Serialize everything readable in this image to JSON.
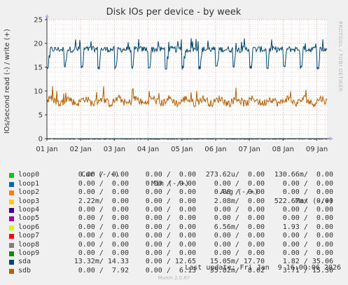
{
  "chart_data": {
    "type": "line",
    "title": "Disk IOs per device - by week",
    "ylabel": "IOs/second read (-) / write (+)",
    "side_label": "RRDTOOL / TOBI OETIKER",
    "x_ticks": [
      "01 Jan",
      "02 Jan",
      "03 Jan",
      "04 Jan",
      "05 Jan",
      "06 Jan",
      "07 Jan",
      "08 Jan",
      "09 Jan"
    ],
    "y_ticks": [
      0,
      5,
      10,
      15,
      20,
      25
    ],
    "ylim": [
      0,
      25
    ],
    "xlim_days": [
      0,
      8.3
    ],
    "grid": true,
    "series": [
      {
        "name": "sda",
        "color": "#00476e",
        "pattern": "weekly-periodic",
        "high": 18.5,
        "low": 14.5,
        "mean": 17.7
      },
      {
        "name": "sdb",
        "color": "#b35e00",
        "pattern": "noisy",
        "mean": 7.9,
        "range": [
          6.5,
          11.0
        ]
      }
    ]
  },
  "legend": {
    "headers": {
      "cur": "Cur (-/+)",
      "min": "Min (-/+)",
      "avg": "Avg (-/+)",
      "max": "Max (-/+)"
    },
    "rows": [
      {
        "name": "loop0",
        "color": "#00cc00",
        "cur": "0.00 /  0.00",
        "min": "0.00 /  0.00",
        "avg": "273.62u/  0.00",
        "max": "130.66m/  0.00"
      },
      {
        "name": "loop1",
        "color": "#0066b3",
        "cur": "0.00 /  0.00",
        "min": "0.00 /  0.00",
        "avg": "0.00 /  0.00",
        "max": "0.00 /  0.00"
      },
      {
        "name": "loop2",
        "color": "#ff8000",
        "cur": "0.00 /  0.00",
        "min": "0.00 /  0.00",
        "avg": "0.00 /  0.00",
        "max": "0.00 /  0.00"
      },
      {
        "name": "loop3",
        "color": "#ffcc00",
        "cur": "2.22m/  0.00",
        "min": "0.00 /  0.00",
        "avg": "2.08m/  0.00",
        "max": "522.67m/  0.00"
      },
      {
        "name": "loop4",
        "color": "#330099",
        "cur": "0.00 /  0.00",
        "min": "0.00 /  0.00",
        "avg": "0.00 /  0.00",
        "max": "0.00 /  0.00"
      },
      {
        "name": "loop5",
        "color": "#990099",
        "cur": "0.00 /  0.00",
        "min": "0.00 /  0.00",
        "avg": "0.00 /  0.00",
        "max": "0.00 /  0.00"
      },
      {
        "name": "loop6",
        "color": "#ccff00",
        "cur": "0.00 /  0.00",
        "min": "0.00 /  0.00",
        "avg": "6.56m/  0.00",
        "max": "1.93 /  0.00"
      },
      {
        "name": "loop7",
        "color": "#ff0000",
        "cur": "0.00 /  0.00",
        "min": "0.00 /  0.00",
        "avg": "0.00 /  0.00",
        "max": "0.00 /  0.00"
      },
      {
        "name": "loop8",
        "color": "#808080",
        "cur": "0.00 /  0.00",
        "min": "0.00 /  0.00",
        "avg": "0.00 /  0.00",
        "max": "0.00 /  0.00"
      },
      {
        "name": "loop9",
        "color": "#008f00",
        "cur": "0.00 /  0.00",
        "min": "0.00 /  0.00",
        "avg": "0.00 /  0.00",
        "max": "0.00 /  0.00"
      },
      {
        "name": "sda",
        "color": "#00476e",
        "cur": "13.32m/ 14.33",
        "min": "0.00 / 12.65",
        "avg": "15.05m/ 17.70",
        "max": "1.82 / 35.06"
      },
      {
        "name": "sdb",
        "color": "#b35e00",
        "cur": "0.00 /  7.92",
        "min": "0.00 /  6.13",
        "avg": "35.82m/  8.02",
        "max": "3.71 / 15.30"
      }
    ]
  },
  "last_update": "Last update: Fri Jan  9 16:00:06 2026",
  "munin_version": "Munin 2.0.67"
}
